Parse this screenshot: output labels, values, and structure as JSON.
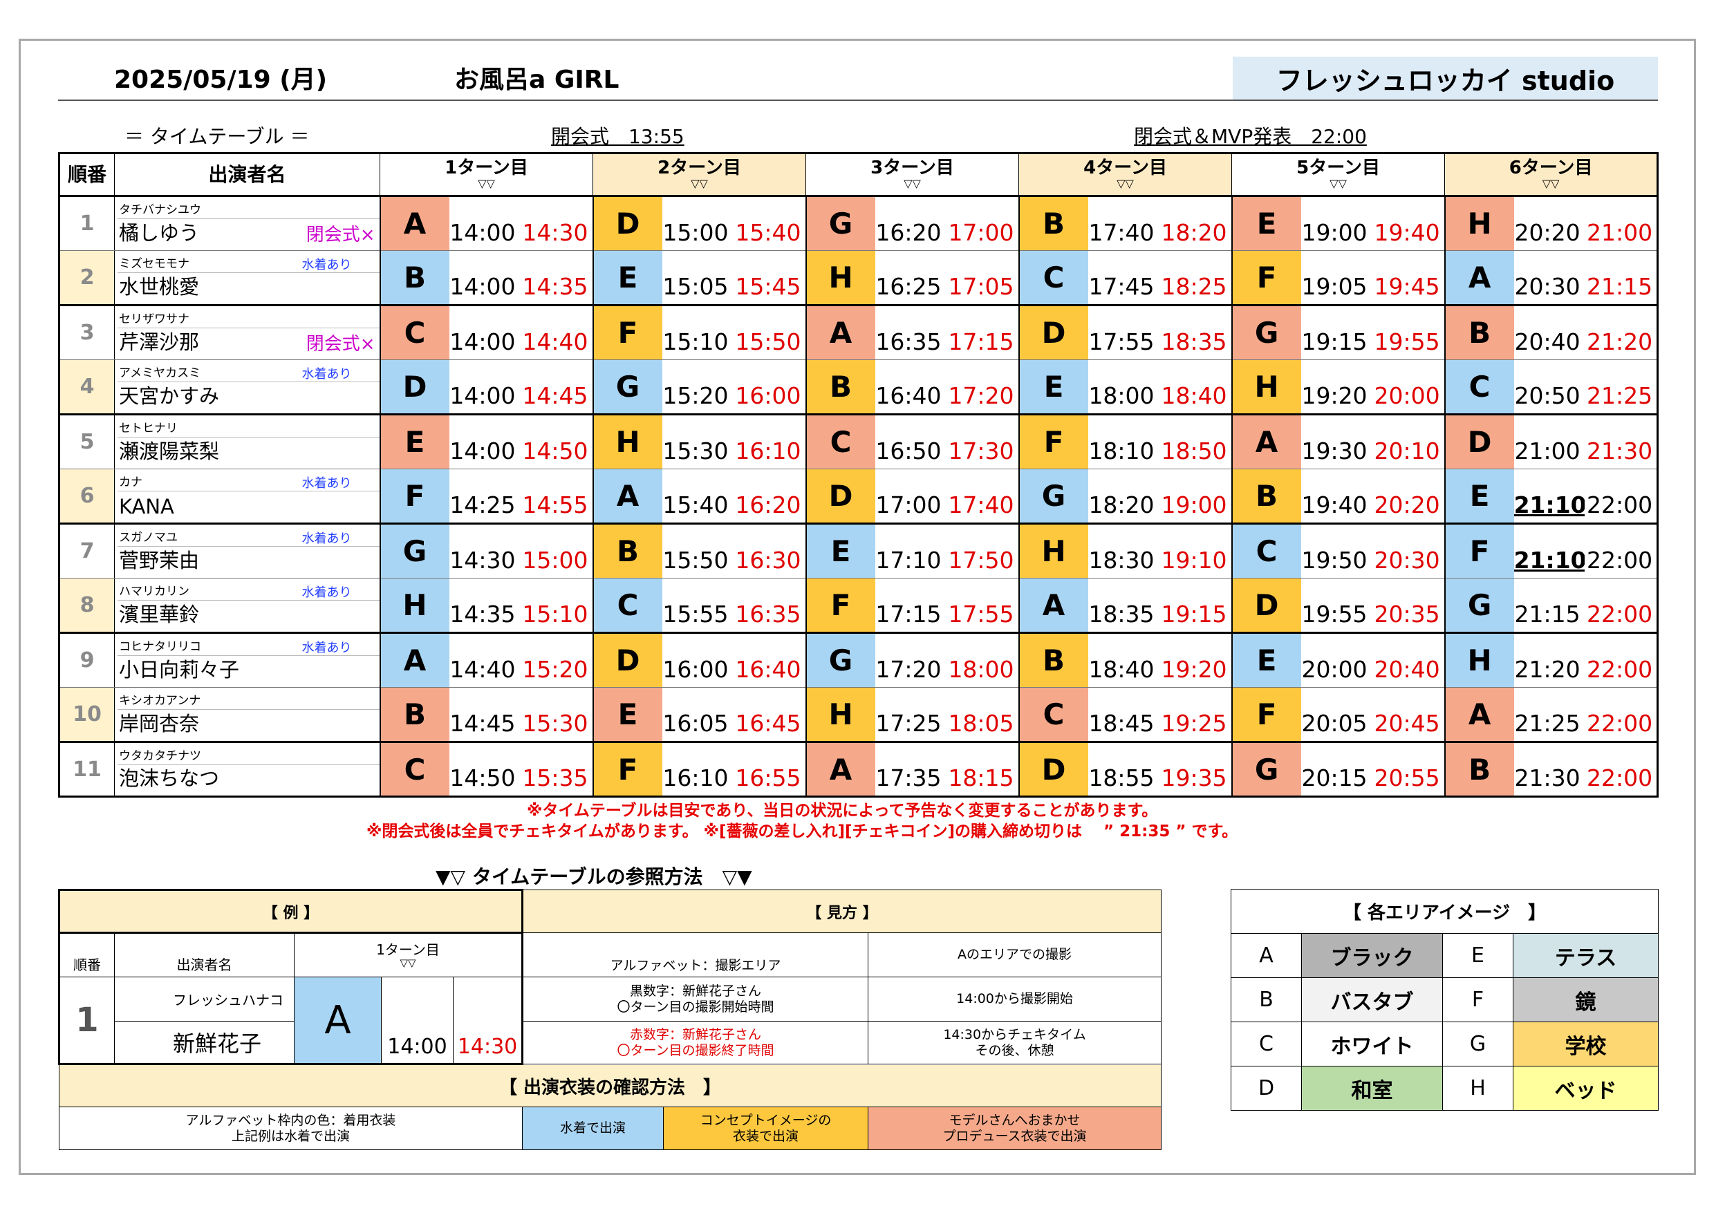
{
  "header": {
    "date": "2025/05/19 (月)",
    "event_title": "お風呂a GIRL",
    "studio": "フレッシュロッカイ studio"
  },
  "subheader": {
    "timetable_label": "＝ タイムテーブル ＝",
    "opening": "開会式　13:55",
    "closing": "閉会式＆MVP発表　22:00"
  },
  "table_headers": {
    "number": "順番",
    "performer": "出演者名",
    "turns": [
      "1ターン目",
      "2ターン目",
      "3ターン目",
      "4ターン目",
      "5ターン目",
      "6ターン目"
    ],
    "arrow": "▽▽"
  },
  "colors": {
    "swimsuit_blue": "#a9d5f4",
    "producer_orange": "#f6a98a",
    "concept_yellow": "#fdc83e",
    "end_time_red": "#e00000",
    "header_beige": "#fdebc6"
  },
  "rows": [
    {
      "no": "1",
      "kana": "タチバナシユウ",
      "name": "橘しゆう",
      "tag": "閉会式×",
      "swim": "",
      "turns": [
        [
          "A",
          "or",
          "14:00",
          "14:30"
        ],
        [
          "D",
          "ye",
          "15:00",
          "15:40"
        ],
        [
          "G",
          "or",
          "16:20",
          "17:00"
        ],
        [
          "B",
          "ye",
          "17:40",
          "18:20"
        ],
        [
          "E",
          "or",
          "19:00",
          "19:40"
        ],
        [
          "H",
          "or",
          "20:20",
          "21:00"
        ]
      ]
    },
    {
      "no": "2",
      "kana": "ミズセモモナ",
      "name": "水世桃愛",
      "tag": "",
      "swim": "水着あり",
      "turns": [
        [
          "B",
          "bl",
          "14:00",
          "14:35"
        ],
        [
          "E",
          "bl",
          "15:05",
          "15:45"
        ],
        [
          "H",
          "ye",
          "16:25",
          "17:05"
        ],
        [
          "C",
          "bl",
          "17:45",
          "18:25"
        ],
        [
          "F",
          "ye",
          "19:05",
          "19:45"
        ],
        [
          "A",
          "bl",
          "20:30",
          "21:15"
        ]
      ]
    },
    {
      "no": "3",
      "kana": "セリザワサナ",
      "name": "芹澤沙那",
      "tag": "閉会式×",
      "swim": "",
      "turns": [
        [
          "C",
          "or",
          "14:00",
          "14:40"
        ],
        [
          "F",
          "ye",
          "15:10",
          "15:50"
        ],
        [
          "A",
          "or",
          "16:35",
          "17:15"
        ],
        [
          "D",
          "ye",
          "17:55",
          "18:35"
        ],
        [
          "G",
          "or",
          "19:15",
          "19:55"
        ],
        [
          "B",
          "or",
          "20:40",
          "21:20"
        ]
      ]
    },
    {
      "no": "4",
      "kana": "アメミヤカスミ",
      "name": "天宮かすみ",
      "tag": "",
      "swim": "水着あり",
      "turns": [
        [
          "D",
          "bl",
          "14:00",
          "14:45"
        ],
        [
          "G",
          "bl",
          "15:20",
          "16:00"
        ],
        [
          "B",
          "ye",
          "16:40",
          "17:20"
        ],
        [
          "E",
          "bl",
          "18:00",
          "18:40"
        ],
        [
          "H",
          "ye",
          "19:20",
          "20:00"
        ],
        [
          "C",
          "bl",
          "20:50",
          "21:25"
        ]
      ]
    },
    {
      "no": "5",
      "kana": "セトヒナリ",
      "name": "瀬渡陽菜梨",
      "tag": "",
      "swim": "",
      "turns": [
        [
          "E",
          "or",
          "14:00",
          "14:50"
        ],
        [
          "H",
          "ye",
          "15:30",
          "16:10"
        ],
        [
          "C",
          "or",
          "16:50",
          "17:30"
        ],
        [
          "F",
          "ye",
          "18:10",
          "18:50"
        ],
        [
          "A",
          "or",
          "19:30",
          "20:10"
        ],
        [
          "D",
          "or",
          "21:00",
          "21:30"
        ]
      ]
    },
    {
      "no": "6",
      "kana": "カナ",
      "name": "KANA",
      "tag": "",
      "swim": "水着あり",
      "turns": [
        [
          "F",
          "bl",
          "14:25",
          "14:55"
        ],
        [
          "A",
          "bl",
          "15:40",
          "16:20"
        ],
        [
          "D",
          "ye",
          "17:00",
          "17:40"
        ],
        [
          "G",
          "bl",
          "18:20",
          "19:00"
        ],
        [
          "B",
          "ye",
          "19:40",
          "20:20"
        ],
        [
          "E",
          "bl",
          "21:10",
          "22:00"
        ]
      ]
    },
    {
      "no": "7",
      "kana": "スガノマユ",
      "name": "菅野茉由",
      "tag": "",
      "swim": "水着あり",
      "turns": [
        [
          "G",
          "bl",
          "14:30",
          "15:00"
        ],
        [
          "B",
          "ye",
          "15:50",
          "16:30"
        ],
        [
          "E",
          "bl",
          "17:10",
          "17:50"
        ],
        [
          "H",
          "ye",
          "18:30",
          "19:10"
        ],
        [
          "C",
          "bl",
          "19:50",
          "20:30"
        ],
        [
          "F",
          "bl",
          "21:10",
          "22:00"
        ]
      ]
    },
    {
      "no": "8",
      "kana": "ハマリカリン",
      "name": "濱里華鈴",
      "tag": "",
      "swim": "水着あり",
      "turns": [
        [
          "H",
          "bl",
          "14:35",
          "15:10"
        ],
        [
          "C",
          "bl",
          "15:55",
          "16:35"
        ],
        [
          "F",
          "ye",
          "17:15",
          "17:55"
        ],
        [
          "A",
          "bl",
          "18:35",
          "19:15"
        ],
        [
          "D",
          "ye",
          "19:55",
          "20:35"
        ],
        [
          "G",
          "bl",
          "21:15",
          "22:00"
        ]
      ]
    },
    {
      "no": "9",
      "kana": "コヒナタリリコ",
      "name": "小日向莉々子",
      "tag": "",
      "swim": "水着あり",
      "turns": [
        [
          "A",
          "bl",
          "14:40",
          "15:20"
        ],
        [
          "D",
          "ye",
          "16:00",
          "16:40"
        ],
        [
          "G",
          "bl",
          "17:20",
          "18:00"
        ],
        [
          "B",
          "ye",
          "18:40",
          "19:20"
        ],
        [
          "E",
          "bl",
          "20:00",
          "20:40"
        ],
        [
          "H",
          "bl",
          "21:20",
          "22:00"
        ]
      ]
    },
    {
      "no": "10",
      "kana": "キシオカアンナ",
      "name": "岸岡杏奈",
      "tag": "",
      "swim": "",
      "turns": [
        [
          "B",
          "or",
          "14:45",
          "15:30"
        ],
        [
          "E",
          "or",
          "16:05",
          "16:45"
        ],
        [
          "H",
          "ye",
          "17:25",
          "18:05"
        ],
        [
          "C",
          "or",
          "18:45",
          "19:25"
        ],
        [
          "F",
          "ye",
          "20:05",
          "20:45"
        ],
        [
          "A",
          "or",
          "21:25",
          "22:00"
        ]
      ]
    },
    {
      "no": "11",
      "kana": "ウタカタチナツ",
      "name": "泡沫ちなつ",
      "tag": "",
      "swim": "",
      "turns": [
        [
          "C",
          "or",
          "14:50",
          "15:35"
        ],
        [
          "F",
          "ye",
          "16:10",
          "16:55"
        ],
        [
          "A",
          "or",
          "17:35",
          "18:15"
        ],
        [
          "D",
          "ye",
          "18:55",
          "19:35"
        ],
        [
          "G",
          "or",
          "20:15",
          "20:55"
        ],
        [
          "B",
          "or",
          "21:30",
          "22:00"
        ]
      ]
    }
  ],
  "notes": {
    "line1": "※タイムテーブルは目安であり、当日の状況によって予告なく変更することがあります。",
    "line2": "※閉会式後は全員でチェキタイムがあります。 ※[薔薇の差し入れ][チェキコイン]の購入締め切りは　 ” 21:35 ” です。"
  },
  "howto": {
    "title": "▼▽ タイムテーブルの参照方法　▽▼",
    "example_header": "【 例 】",
    "reading_header": "【 見方 】",
    "number": "順番",
    "performer": "出演者名",
    "turn1": "1ターン目",
    "arrow": "▽▽",
    "ex_no": "1",
    "ex_kana": "フレッシュハナコ",
    "ex_name": "新鮮花子",
    "ex_area": "A",
    "ex_start": "14:00",
    "ex_end": "14:30",
    "r1a": "アルファベット：撮影エリア",
    "r1b": "Aのエリアでの撮影",
    "r2a": "黒数字：新鮮花子さん\n〇ターン目の撮影開始時間",
    "r2b": "14:00から撮影開始",
    "r3a": "赤数字：新鮮花子さん\n〇ターン目の撮影終了時間",
    "r3b": "14:30からチェキタイム\nその後、休憩",
    "costume_header": "【 出演衣装の確認方法　】",
    "c1": "アルファベット枠内の色：着用衣装\n上記例は水着で出演",
    "c2": "水着で出演",
    "c3": "コンセプトイメージの\n衣装で出演",
    "c4": "モデルさんへおまかせ\nプロデュース衣装で出演"
  },
  "areas": {
    "header": "【 各エリアイメージ　】",
    "items": [
      {
        "letter": "A",
        "name": "ブラック",
        "color": "#b3b3b3"
      },
      {
        "letter": "E",
        "name": "テラス",
        "color": "#d2e4e8"
      },
      {
        "letter": "B",
        "name": "バスタブ",
        "color": "#f2f2f2"
      },
      {
        "letter": "F",
        "name": "鏡",
        "color": "#c8c8c8"
      },
      {
        "letter": "C",
        "name": "ホワイト",
        "color": "#ffffff"
      },
      {
        "letter": "G",
        "name": "学校",
        "color": "#fdd772"
      },
      {
        "letter": "D",
        "name": "和室",
        "color": "#b9dca7"
      },
      {
        "letter": "H",
        "name": "ベッド",
        "color": "#ffff9e"
      }
    ]
  }
}
